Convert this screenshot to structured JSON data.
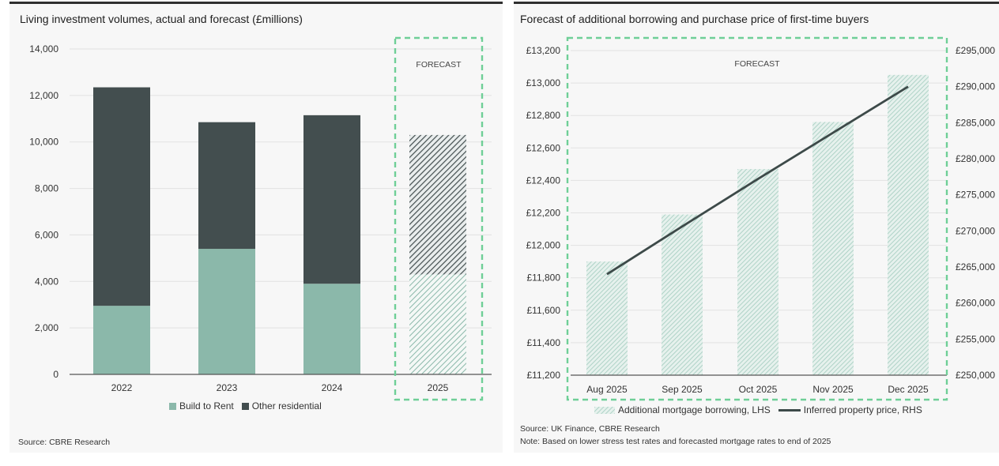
{
  "left_chart": {
    "title": "Living investment volumes, actual and forecast (£millions)",
    "source": "Source: CBRE Research",
    "forecast_label": "FORECAST",
    "legend": [
      "Build to Rent",
      "Other residential"
    ],
    "colors": {
      "build_to_rent": "#8bb8aa",
      "other_residential": "#434e4f",
      "forecast_box": "#6fcf97"
    }
  },
  "right_chart": {
    "title": "Forecast of additional borrowing and purchase price of first-time buyers",
    "source": "Source: UK Finance, CBRE Research",
    "note": "Note: Based on lower stress test rates and forecasted mortgage rates to end of 2025",
    "forecast_label": "FORECAST",
    "legend": [
      "Additional mortgage borrowing, LHS",
      "Inferred property price, RHS"
    ],
    "colors": {
      "bars": "#a9cfc3",
      "line": "#3d4a49",
      "forecast_box": "#6fcf97"
    }
  },
  "chart_data": [
    {
      "type": "bar",
      "stacked": true,
      "title": "Living investment volumes, actual and forecast (£millions)",
      "categories": [
        "2022",
        "2023",
        "2024",
        "2025"
      ],
      "series": [
        {
          "name": "Build to Rent",
          "values": [
            2950,
            5400,
            3900,
            4300
          ]
        },
        {
          "name": "Other residential",
          "values": [
            9400,
            5450,
            7250,
            6000
          ]
        }
      ],
      "forecast_categories": [
        "2025"
      ],
      "ylim": [
        0,
        14000
      ],
      "yticks": [
        "0",
        "2,000",
        "4,000",
        "6,000",
        "8,000",
        "10,000",
        "12,000",
        "14,000"
      ],
      "grid": true,
      "legend_position": "bottom"
    },
    {
      "type": "bar",
      "title": "Forecast of additional borrowing and purchase price of first-time buyers",
      "categories": [
        "Aug 2025",
        "Sep 2025",
        "Oct 2025",
        "Nov 2025",
        "Dec 2025"
      ],
      "series": [
        {
          "name": "Additional mortgage borrowing, LHS",
          "type": "bar",
          "axis": "left",
          "values": [
            11900,
            12190,
            12470,
            12760,
            13050
          ]
        },
        {
          "name": "Inferred property price, RHS",
          "type": "line",
          "axis": "right",
          "values": [
            264000,
            270600,
            277200,
            283600,
            290000
          ]
        }
      ],
      "ylim_left": [
        11200,
        13200
      ],
      "yticks_left": [
        "£11,200",
        "£11,400",
        "£11,600",
        "£11,800",
        "£12,000",
        "£12,200",
        "£12,400",
        "£12,600",
        "£12,800",
        "£13,000",
        "£13,200"
      ],
      "ylim_right": [
        250000,
        295000
      ],
      "yticks_right": [
        "£250,000",
        "£255,000",
        "£260,000",
        "£265,000",
        "£270,000",
        "£275,000",
        "£280,000",
        "£285,000",
        "£290,000",
        "£295,000"
      ],
      "grid": true,
      "legend_position": "bottom"
    }
  ]
}
